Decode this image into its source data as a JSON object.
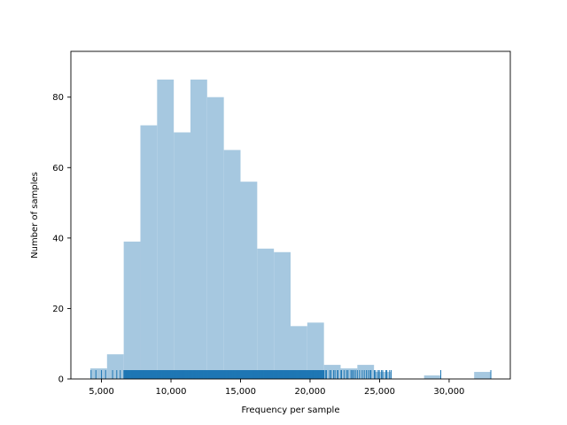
{
  "chart_data": {
    "type": "bar",
    "title": "",
    "xlabel": "Frequency per sample",
    "ylabel": "Number of samples",
    "xlim": [
      2800,
      34400
    ],
    "ylim": [
      0,
      93
    ],
    "x_ticks": [
      {
        "value": 5000,
        "label": "5,000"
      },
      {
        "value": 10000,
        "label": "10,000"
      },
      {
        "value": 15000,
        "label": "15,000"
      },
      {
        "value": 20000,
        "label": "20,000"
      },
      {
        "value": 25000,
        "label": "25,000"
      },
      {
        "value": 30000,
        "label": "30,000"
      }
    ],
    "y_ticks": [
      {
        "value": 0,
        "label": "0"
      },
      {
        "value": 20,
        "label": "20"
      },
      {
        "value": 40,
        "label": "40"
      },
      {
        "value": 60,
        "label": "60"
      },
      {
        "value": 80,
        "label": "80"
      }
    ],
    "bin_edges": [
      4200,
      5400,
      6600,
      7800,
      9000,
      10200,
      11400,
      12600,
      13800,
      15000,
      16200,
      17400,
      18600,
      19800,
      21000,
      22200,
      23400,
      24600,
      25800,
      27000,
      28200,
      29400,
      30600,
      31800,
      33000
    ],
    "counts": [
      3,
      7,
      39,
      72,
      85,
      70,
      85,
      80,
      65,
      56,
      37,
      36,
      15,
      16,
      4,
      3,
      4,
      2,
      0,
      0,
      1,
      0,
      0,
      2
    ],
    "bar_color": "#a6c8e0",
    "rug_color": "#1f77b4",
    "rug_values": [
      4250,
      4600,
      5000,
      5300,
      5800,
      6100,
      6350,
      29400,
      33000
    ],
    "rug_dense_ranges": [
      [
        6600,
        21000
      ],
      [
        21000,
        25800
      ]
    ]
  }
}
